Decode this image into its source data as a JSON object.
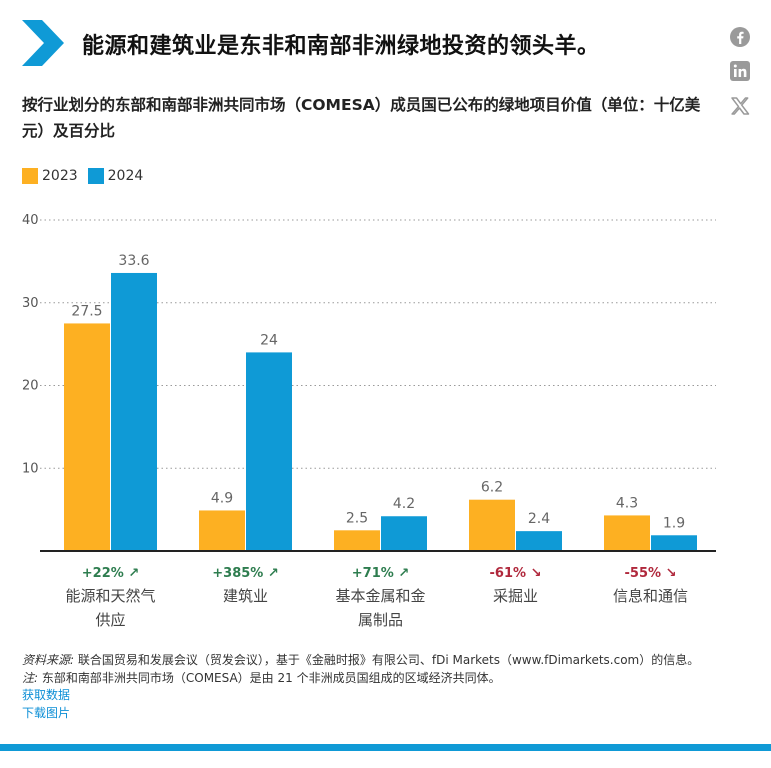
{
  "title": "能源和建筑业是东非和南部非洲绿地投资的领头羊。",
  "subtitle": "按行业划分的东部和南部非洲共同市场（COMESA）成员国已公布的绿地项目价值（单位：十亿美元）及百分比",
  "social": {
    "facebook": "facebook-icon",
    "linkedin": "linkedin-icon",
    "x": "x-icon"
  },
  "colors": {
    "accent": "#0f9ad6",
    "y2023": "#fdb022",
    "y2024": "#0f9ad6",
    "up": "#2e7d4f",
    "down": "#b0283c"
  },
  "chart_data": {
    "type": "bar",
    "categories": [
      "能源和天然气供应",
      "建筑业",
      "基本金属和金属制品",
      "采掘业",
      "信息和通信"
    ],
    "category_lines": [
      [
        "能源和天然气",
        "供应"
      ],
      [
        "建筑业"
      ],
      [
        "基本金属和金",
        "属制品"
      ],
      [
        "采掘业"
      ],
      [
        "信息和通信"
      ]
    ],
    "series": [
      {
        "name": "2023",
        "values": [
          27.5,
          4.9,
          2.5,
          6.2,
          4.3
        ],
        "labels": [
          "27.5",
          "4.9",
          "2.5",
          "6.2",
          "4.3"
        ]
      },
      {
        "name": "2024",
        "values": [
          33.6,
          24,
          4.2,
          2.4,
          1.9
        ],
        "labels": [
          "33.6",
          "24",
          "4.2",
          "2.4",
          "1.9"
        ]
      }
    ],
    "changes": [
      "+22% ↗",
      "+385% ↗",
      "+71% ↗",
      "-61% ↘",
      "-55% ↘"
    ],
    "change_direction": [
      "up",
      "up",
      "up",
      "down",
      "down"
    ],
    "yticks": [
      10,
      20,
      30,
      40
    ],
    "ylim": [
      0,
      40
    ],
    "grid": true,
    "legend": "top-left"
  },
  "notes": {
    "source_label": "资料来源:",
    "source_text": "联合国贸易和发展会议（贸发会议），基于《金融时报》有限公司、fDi Markets（www.fDimarkets.com）的信息。",
    "note_label": "注:",
    "note_text": "东部和南部非洲共同市场（COMESA）是由 21 个非洲成员国组成的区域经济共同体。",
    "get_data": "获取数据",
    "download_image": "下载图片"
  }
}
